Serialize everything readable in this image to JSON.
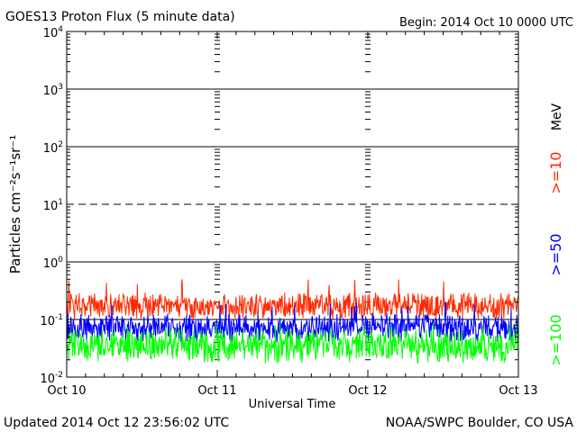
{
  "chart_data": {
    "type": "line",
    "title": "GOES13 Proton Flux (5 minute data)",
    "begin_label": "Begin: 2014 Oct 10 0000 UTC",
    "xlabel": "Universal Time",
    "ylabel": "Particles cm⁻²s⁻¹sr⁻¹",
    "updated_label": "Updated 2014 Oct 12 23:56:02 UTC",
    "credit_label": "NOAA/SWPC Boulder, CO USA",
    "units_label": "MeV",
    "yscale": "log",
    "ylim": [
      0.01,
      10000
    ],
    "xlim_days": [
      0,
      3
    ],
    "x_ticks": [
      "Oct 10",
      "Oct 11",
      "Oct 12",
      "Oct 13"
    ],
    "y_ticks": [
      {
        "value": 0.01,
        "base": "10",
        "exp": "-2"
      },
      {
        "value": 0.1,
        "base": "10",
        "exp": "-1"
      },
      {
        "value": 1,
        "base": "10",
        "exp": "0"
      },
      {
        "value": 10,
        "base": "10",
        "exp": "1"
      },
      {
        "value": 100,
        "base": "10",
        "exp": "2"
      },
      {
        "value": 1000,
        "base": "10",
        "exp": "3"
      },
      {
        "value": 10000,
        "base": "10",
        "exp": "4"
      }
    ],
    "threshold_line": {
      "value": 10,
      "style": "dashed"
    },
    "grid": true,
    "series": [
      {
        "name": ">=10",
        "color": "#ff2a00",
        "typical_range": [
          0.1,
          0.3
        ],
        "peak": 0.5
      },
      {
        "name": ">=50",
        "color": "#0000ff",
        "typical_range": [
          0.04,
          0.13
        ],
        "peak": 0.2
      },
      {
        "name": ">=100",
        "color": "#00ff00",
        "typical_range": [
          0.017,
          0.07
        ],
        "peak": 0.09
      }
    ]
  }
}
